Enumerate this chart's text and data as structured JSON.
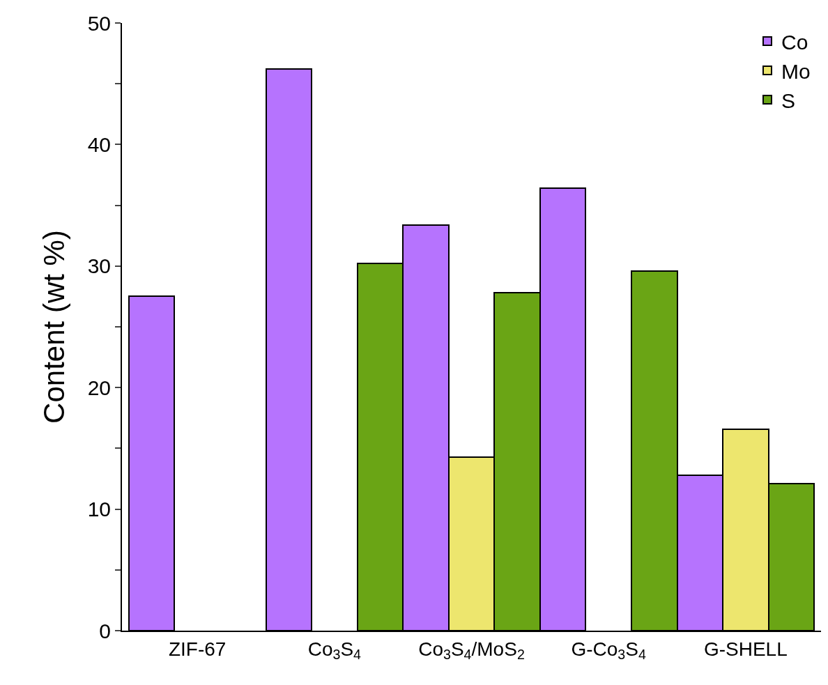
{
  "chart_data": {
    "type": "bar",
    "ylabel": "Content (wt %)",
    "categories": [
      "ZIF-67",
      "Co$_{3}$S$_{4}$",
      "Co$_{3}$S$_{4}$/MoS$_{2}$",
      "G-Co$_{3}$S$_{4}$",
      "G-SHELL"
    ],
    "series": [
      {
        "name": "Co",
        "color": "#b673fe",
        "values": [
          27.5,
          46.2,
          33.4,
          36.4,
          12.8
        ]
      },
      {
        "name": "Mo",
        "color": "#ede66e",
        "values": [
          null,
          null,
          14.3,
          null,
          16.6
        ]
      },
      {
        "name": "S",
        "color": "#6aa515",
        "values": [
          null,
          30.2,
          27.8,
          29.6,
          12.1
        ]
      }
    ],
    "ylim": [
      0,
      50
    ],
    "yticks": [
      0,
      {
        "value": 5,
        "label": null
      },
      10,
      {
        "value": 15,
        "label": null
      },
      20,
      {
        "value": 25,
        "label": null
      },
      30,
      {
        "value": 35,
        "label": null
      },
      40,
      {
        "value": 45,
        "label": null
      },
      50
    ],
    "grid": false,
    "legend": "top right"
  }
}
